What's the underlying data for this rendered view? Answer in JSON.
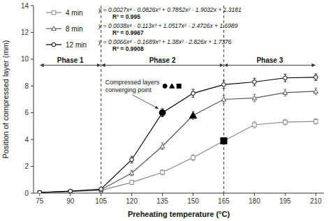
{
  "chart_data": {
    "type": "line",
    "xlabel": "Preheating temperature (°C)",
    "ylabel": "Position of compressed layer (mm)",
    "x": [
      75,
      90,
      105,
      120,
      135,
      150,
      165,
      180,
      195,
      210
    ],
    "xlim": [
      72,
      214
    ],
    "xticks": [
      75,
      90,
      105,
      120,
      135,
      150,
      165,
      180,
      195,
      210
    ],
    "ylim": [
      0,
      14
    ],
    "yticks": [
      0,
      2,
      4,
      6,
      8,
      10,
      12,
      14
    ],
    "grid": false,
    "legend": "upper left",
    "highlight_color": "#000000",
    "series": [
      {
        "name": "4 min",
        "color": "#888888",
        "marker": "square",
        "line_style": "solid",
        "values": [
          0.05,
          0.12,
          0.2,
          0.8,
          1.55,
          2.65,
          3.9,
          5.1,
          5.3,
          5.35
        ],
        "errors": [
          0.05,
          0.05,
          0.08,
          0.15,
          0.18,
          0.22,
          0.25,
          0.25,
          0.2,
          0.2
        ],
        "highlight": {
          "x": 165,
          "y": 3.9
        },
        "equation": "y = 0.0027x⁴ - 0.0826x³ + 0.7852x² - 1.9032x + 1.3181",
        "r_squared": "R² = 0.995"
      },
      {
        "name": "8 min",
        "color": "#555555",
        "marker": "triangle",
        "line_style": "solid",
        "values": [
          0.05,
          0.12,
          0.25,
          1.5,
          3.5,
          5.8,
          7.0,
          7.1,
          7.5,
          7.6
        ],
        "errors": [
          0.05,
          0.05,
          0.1,
          0.2,
          0.25,
          0.3,
          0.28,
          0.28,
          0.25,
          0.25
        ],
        "highlight": {
          "x": 150,
          "y": 5.8
        },
        "equation": "y = 0.0038x⁴ - 0.113x³ + 1.0517x² - 2.4726x + 1.6989",
        "r_squared": "R² = 0.9967"
      },
      {
        "name": "12 min",
        "color": "#000000",
        "marker": "circle",
        "line_style": "solid",
        "values": [
          0.05,
          0.15,
          0.3,
          2.5,
          6.0,
          7.45,
          8.1,
          8.3,
          8.6,
          8.65
        ],
        "errors": [
          0.05,
          0.05,
          0.1,
          0.25,
          0.3,
          0.3,
          0.28,
          0.28,
          0.28,
          0.25
        ],
        "highlight": {
          "x": 135,
          "y": 6.0
        },
        "equation": "y = 0.0066x⁴ - 0.1689x³ + 1.38x² - 2.826x + 1.7376",
        "r_squared": "R² = 0.9908"
      }
    ],
    "vlines": [
      105,
      165
    ],
    "phases": [
      {
        "label": "Phase 1",
        "x": [
          75,
          105
        ]
      },
      {
        "label": "Phase 2",
        "x": [
          105,
          165
        ]
      },
      {
        "label": "Phase 3",
        "x": [
          165,
          210
        ]
      }
    ],
    "phase_arrow_y": 9.55,
    "annotations": [
      {
        "text": "Compressed layers\nconverging point"
      }
    ]
  }
}
